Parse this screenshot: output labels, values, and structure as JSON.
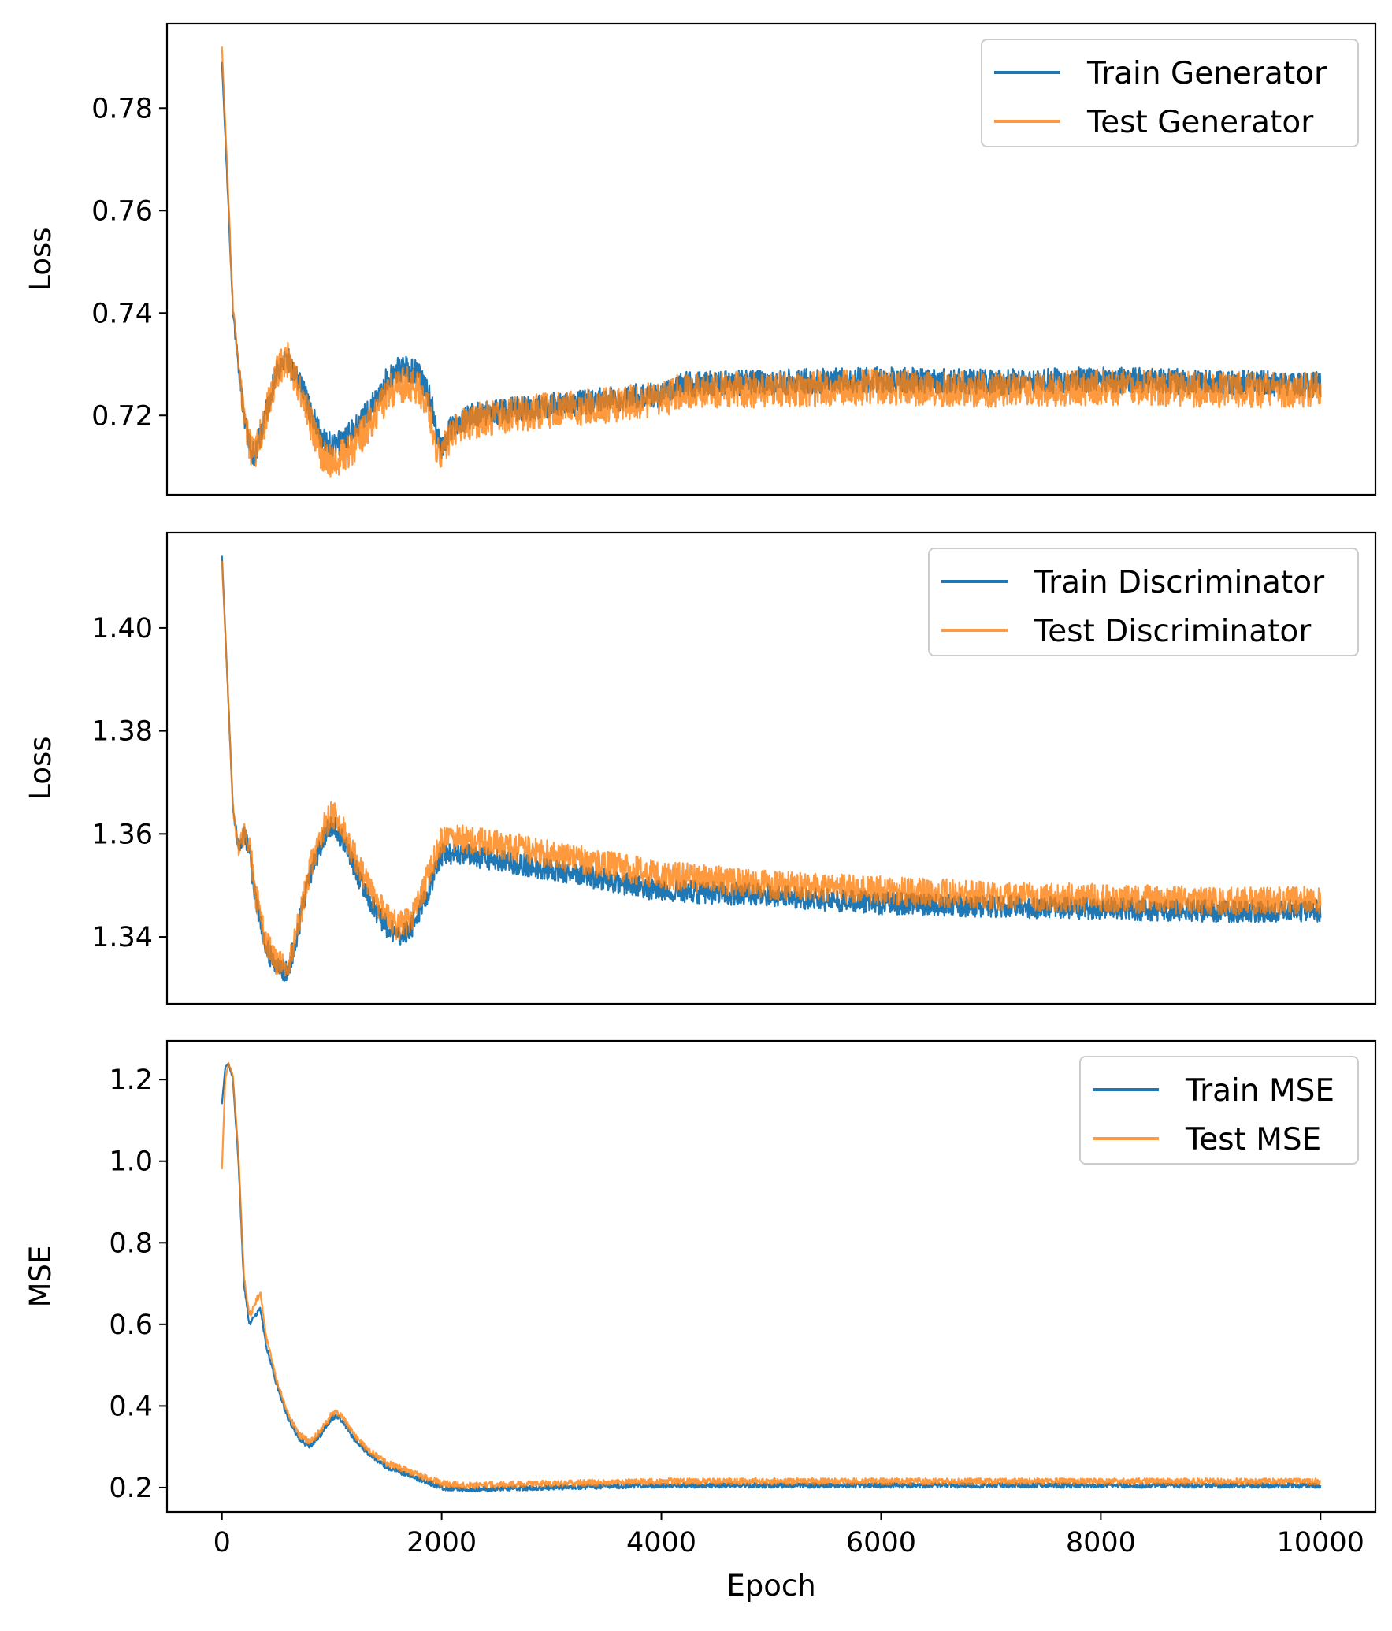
{
  "colors": {
    "train": "#1f77b4",
    "test": "#ff7f0e"
  },
  "chart_data": [
    {
      "type": "line",
      "ylabel": "Loss",
      "xlabel": "",
      "xlim": [
        -500,
        10500
      ],
      "ylim": [
        0.7045,
        0.7965
      ],
      "xticks": [],
      "yticks": [
        0.72,
        0.74,
        0.76,
        0.78
      ],
      "ytick_labels": [
        "0.72",
        "0.74",
        "0.76",
        "0.78"
      ],
      "legend": "top-right",
      "noise": {
        "train": 0.0025,
        "test": 0.0035
      },
      "series": [
        {
          "name": "Train Generator",
          "color": "#1f77b4",
          "x": [
            0,
            50,
            100,
            150,
            200,
            250,
            300,
            400,
            500,
            600,
            700,
            800,
            900,
            1000,
            1100,
            1200,
            1300,
            1400,
            1500,
            1600,
            1700,
            1800,
            1900,
            1950,
            2000,
            2100,
            2300,
            2600,
            3000,
            3500,
            3900,
            4000,
            4200,
            5000,
            6000,
            7000,
            8000,
            9000,
            10000
          ],
          "y": [
            0.789,
            0.765,
            0.74,
            0.73,
            0.72,
            0.714,
            0.712,
            0.72,
            0.729,
            0.731,
            0.727,
            0.721,
            0.716,
            0.714,
            0.715,
            0.717,
            0.72,
            0.723,
            0.727,
            0.729,
            0.729,
            0.728,
            0.723,
            0.717,
            0.714,
            0.718,
            0.72,
            0.721,
            0.722,
            0.723,
            0.724,
            0.724,
            0.726,
            0.7265,
            0.727,
            0.7265,
            0.727,
            0.7265,
            0.726
          ]
        },
        {
          "name": "Test Generator",
          "color": "#ff7f0e",
          "x": [
            0,
            50,
            100,
            150,
            200,
            250,
            300,
            400,
            500,
            600,
            700,
            800,
            900,
            1000,
            1100,
            1200,
            1300,
            1400,
            1500,
            1600,
            1700,
            1800,
            1900,
            1950,
            2000,
            2100,
            2300,
            2600,
            3000,
            3500,
            3900,
            4000,
            4200,
            5000,
            6000,
            7000,
            8000,
            9000,
            10000
          ],
          "y": [
            0.792,
            0.767,
            0.741,
            0.73,
            0.72,
            0.714,
            0.712,
            0.72,
            0.729,
            0.731,
            0.726,
            0.719,
            0.713,
            0.711,
            0.712,
            0.714,
            0.717,
            0.72,
            0.724,
            0.726,
            0.726,
            0.725,
            0.72,
            0.714,
            0.713,
            0.717,
            0.719,
            0.72,
            0.721,
            0.722,
            0.723,
            0.723,
            0.725,
            0.725,
            0.7255,
            0.725,
            0.7255,
            0.725,
            0.725
          ]
        }
      ]
    },
    {
      "type": "line",
      "ylabel": "Loss",
      "xlabel": "",
      "xlim": [
        -500,
        10500
      ],
      "ylim": [
        1.327,
        1.4185
      ],
      "xticks": [],
      "yticks": [
        1.34,
        1.36,
        1.38,
        1.4
      ],
      "ytick_labels": [
        "1.34",
        "1.36",
        "1.38",
        "1.40"
      ],
      "legend": "top-right",
      "noise": {
        "train": 0.0022,
        "test": 0.0028
      },
      "series": [
        {
          "name": "Train Discriminator",
          "color": "#1f77b4",
          "x": [
            0,
            50,
            100,
            150,
            200,
            250,
            300,
            400,
            500,
            600,
            700,
            800,
            900,
            1000,
            1100,
            1200,
            1300,
            1400,
            1500,
            1600,
            1700,
            1800,
            1900,
            2000,
            2200,
            2500,
            3000,
            3500,
            4000,
            5000,
            6000,
            7000,
            8000,
            9000,
            10000
          ],
          "y": [
            1.414,
            1.39,
            1.365,
            1.357,
            1.36,
            1.357,
            1.348,
            1.338,
            1.334,
            1.333,
            1.342,
            1.352,
            1.358,
            1.362,
            1.359,
            1.354,
            1.349,
            1.345,
            1.342,
            1.34,
            1.341,
            1.345,
            1.35,
            1.356,
            1.356,
            1.355,
            1.353,
            1.351,
            1.349,
            1.348,
            1.3465,
            1.346,
            1.3455,
            1.345,
            1.345
          ]
        },
        {
          "name": "Test Discriminator",
          "color": "#ff7f0e",
          "x": [
            0,
            50,
            100,
            150,
            200,
            250,
            300,
            400,
            500,
            600,
            700,
            800,
            900,
            1000,
            1100,
            1200,
            1300,
            1400,
            1500,
            1600,
            1700,
            1800,
            1900,
            2000,
            2200,
            2500,
            3000,
            3500,
            4000,
            5000,
            6000,
            7000,
            8000,
            9000,
            10000
          ],
          "y": [
            1.413,
            1.39,
            1.365,
            1.357,
            1.36,
            1.358,
            1.349,
            1.339,
            1.335,
            1.334,
            1.343,
            1.353,
            1.36,
            1.364,
            1.361,
            1.356,
            1.351,
            1.347,
            1.344,
            1.342,
            1.343,
            1.347,
            1.353,
            1.359,
            1.359,
            1.358,
            1.356,
            1.354,
            1.352,
            1.35,
            1.349,
            1.348,
            1.3475,
            1.347,
            1.347
          ]
        }
      ]
    },
    {
      "type": "line",
      "ylabel": "MSE",
      "xlabel": "Epoch",
      "xlim": [
        -500,
        10500
      ],
      "ylim": [
        0.14,
        1.295
      ],
      "xticks": [
        0,
        2000,
        4000,
        6000,
        8000,
        10000
      ],
      "xtick_labels": [
        "0",
        "2000",
        "4000",
        "6000",
        "8000",
        "10000"
      ],
      "yticks": [
        0.2,
        0.4,
        0.6,
        0.8,
        1.0,
        1.2
      ],
      "ytick_labels": [
        "0.2",
        "0.4",
        "0.6",
        "0.8",
        "1.0",
        "1.2"
      ],
      "legend": "top-right",
      "noise": {
        "train": 0.006,
        "test": 0.008
      },
      "series": [
        {
          "name": "Train MSE",
          "color": "#1f77b4",
          "x": [
            0,
            30,
            60,
            100,
            150,
            200,
            250,
            300,
            350,
            400,
            500,
            600,
            700,
            800,
            900,
            1000,
            1050,
            1100,
            1200,
            1300,
            1400,
            1500,
            1600,
            1700,
            1800,
            1900,
            2000,
            2200,
            2500,
            3000,
            4000,
            5000,
            6000,
            7000,
            8000,
            9000,
            10000
          ],
          "y": [
            1.14,
            1.23,
            1.24,
            1.2,
            1.0,
            0.7,
            0.6,
            0.62,
            0.64,
            0.55,
            0.45,
            0.37,
            0.32,
            0.3,
            0.33,
            0.37,
            0.375,
            0.36,
            0.32,
            0.29,
            0.27,
            0.25,
            0.24,
            0.23,
            0.22,
            0.21,
            0.2,
            0.195,
            0.197,
            0.2,
            0.205,
            0.205,
            0.205,
            0.205,
            0.205,
            0.205,
            0.205
          ]
        },
        {
          "name": "Test MSE",
          "color": "#ff7f0e",
          "x": [
            0,
            30,
            60,
            100,
            150,
            200,
            250,
            300,
            350,
            400,
            500,
            600,
            700,
            800,
            900,
            1000,
            1050,
            1100,
            1200,
            1300,
            1400,
            1500,
            1600,
            1700,
            1800,
            1900,
            2000,
            2200,
            2500,
            3000,
            4000,
            5000,
            6000,
            7000,
            8000,
            9000,
            10000
          ],
          "y": [
            0.98,
            1.2,
            1.24,
            1.21,
            1.02,
            0.72,
            0.62,
            0.65,
            0.68,
            0.57,
            0.46,
            0.38,
            0.33,
            0.31,
            0.34,
            0.38,
            0.385,
            0.37,
            0.33,
            0.3,
            0.28,
            0.26,
            0.25,
            0.24,
            0.23,
            0.22,
            0.21,
            0.205,
            0.207,
            0.21,
            0.215,
            0.215,
            0.215,
            0.215,
            0.215,
            0.215,
            0.215
          ]
        }
      ]
    }
  ]
}
